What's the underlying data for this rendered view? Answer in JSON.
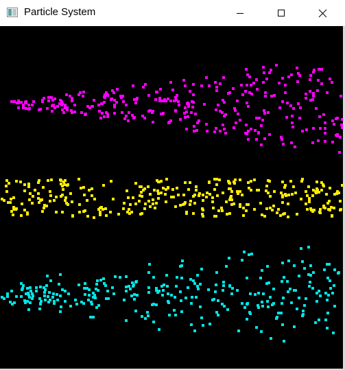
{
  "window": {
    "title": "Particle System",
    "icon": "app-window-icon"
  },
  "titlebar_controls": {
    "minimize": "minimize-icon",
    "maximize": "maximize-icon",
    "close": "close-icon"
  },
  "scene": {
    "background": "#000000",
    "emitters": [
      {
        "name": "magenta",
        "color": "#ff00ff"
      },
      {
        "name": "yellow",
        "color": "#ffea00"
      },
      {
        "name": "cyan",
        "color": "#00e5e5"
      }
    ]
  }
}
